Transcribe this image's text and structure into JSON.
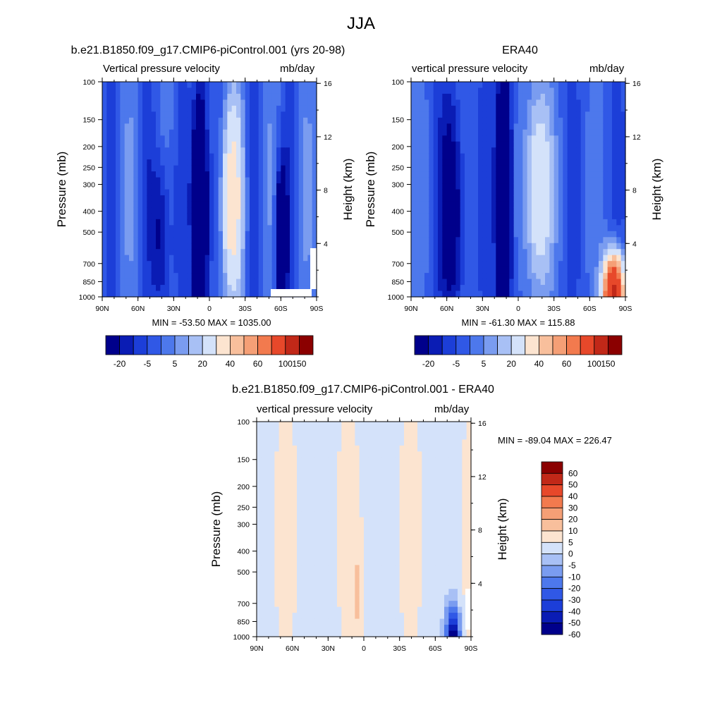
{
  "title": "JJA",
  "palettes": {
    "full": [
      "#00008b",
      "#0a1cb4",
      "#1c3ed8",
      "#3058e6",
      "#4d78ec",
      "#7a9cf0",
      "#a8c0f5",
      "#d4e2fa",
      "#fce4d0",
      "#f8bf9c",
      "#f59f76",
      "#f27a4e",
      "#e7482a",
      "#c12818",
      "#8b0000"
    ],
    "diff": [
      "#00008b",
      "#0a1cb4",
      "#1c3ed8",
      "#3058e6",
      "#4d78ec",
      "#7a9cf0",
      "#a8c0f5",
      "#d4e2fa",
      "#fce4d0",
      "#f8bf9c",
      "#f59f76",
      "#f27a4e",
      "#e7482a",
      "#c12818",
      "#8b0000"
    ]
  },
  "panels": [
    {
      "title": "b.e21.B1850.f09_g17.CMIP6-piControl.001 (yrs 20-98)",
      "left_label": "Vertical pressure velocity",
      "right_label": "mb/day",
      "minmax": "MIN = -53.50  MAX = 1035.00"
    },
    {
      "title": "ERA40",
      "left_label": "vertical pressure velocity",
      "right_label": "mb/day",
      "minmax": "MIN = -61.30  MAX = 115.88"
    },
    {
      "title": "b.e21.B1850.f09_g17.CMIP6-piControl.001 - ERA40",
      "left_label": "vertical pressure velocity",
      "right_label": "mb/day",
      "minmax": "MIN = -89.04  MAX = 226.47"
    }
  ],
  "chart_data": [
    {
      "type": "heatmap",
      "title": "b.e21.B1850.f09_g17.CMIP6-piControl.001 (yrs 20-98)",
      "subtitle_left": "Vertical pressure velocity",
      "subtitle_right": "mb/day",
      "xlabel": "",
      "ylabel": "Pressure (mb)",
      "y2label": "Height (km)",
      "x_ticks": [
        "90N",
        "60N",
        "30N",
        "0",
        "30S",
        "60S",
        "90S"
      ],
      "y_ticks": [
        100,
        150,
        200,
        250,
        300,
        400,
        500,
        700,
        850,
        1000
      ],
      "y2_ticks": [
        4,
        8,
        12,
        16
      ],
      "y_scale": "log",
      "ylim": [
        1000,
        100
      ],
      "colorbar_labels": [
        "-20",
        "-5",
        "5",
        "20",
        "40",
        "60",
        "100",
        "150"
      ],
      "min": -53.5,
      "max": 1035.0
    },
    {
      "type": "heatmap",
      "title": "ERA40",
      "subtitle_left": "vertical pressure velocity",
      "subtitle_right": "mb/day",
      "xlabel": "",
      "ylabel": "Pressure (mb)",
      "y2label": "Height (km)",
      "x_ticks": [
        "90N",
        "60N",
        "30N",
        "0",
        "30S",
        "60S",
        "90S"
      ],
      "y_ticks": [
        100,
        150,
        200,
        250,
        300,
        400,
        500,
        700,
        850,
        1000
      ],
      "y2_ticks": [
        4,
        8,
        12,
        16
      ],
      "y_scale": "log",
      "ylim": [
        1000,
        100
      ],
      "colorbar_labels": [
        "-20",
        "-5",
        "5",
        "20",
        "40",
        "60",
        "100",
        "150"
      ],
      "min": -61.3,
      "max": 115.88
    },
    {
      "type": "heatmap",
      "title": "b.e21.B1850.f09_g17.CMIP6-piControl.001 - ERA40",
      "subtitle_left": "vertical pressure velocity",
      "subtitle_right": "mb/day",
      "xlabel": "",
      "ylabel": "Pressure (mb)",
      "y2label": "Height (km)",
      "x_ticks": [
        "90N",
        "60N",
        "30N",
        "0",
        "30S",
        "60S",
        "90S"
      ],
      "y_ticks": [
        100,
        150,
        200,
        250,
        300,
        400,
        500,
        700,
        850,
        1000
      ],
      "y2_ticks": [
        4,
        8,
        12,
        16
      ],
      "y_scale": "log",
      "ylim": [
        1000,
        100
      ],
      "colorbar_labels": [
        "60",
        "50",
        "40",
        "30",
        "20",
        "10",
        "5",
        "0",
        "-5",
        "-10",
        "-20",
        "-30",
        "-40",
        "-50",
        "-60"
      ],
      "min": -89.04,
      "max": 226.47
    }
  ]
}
